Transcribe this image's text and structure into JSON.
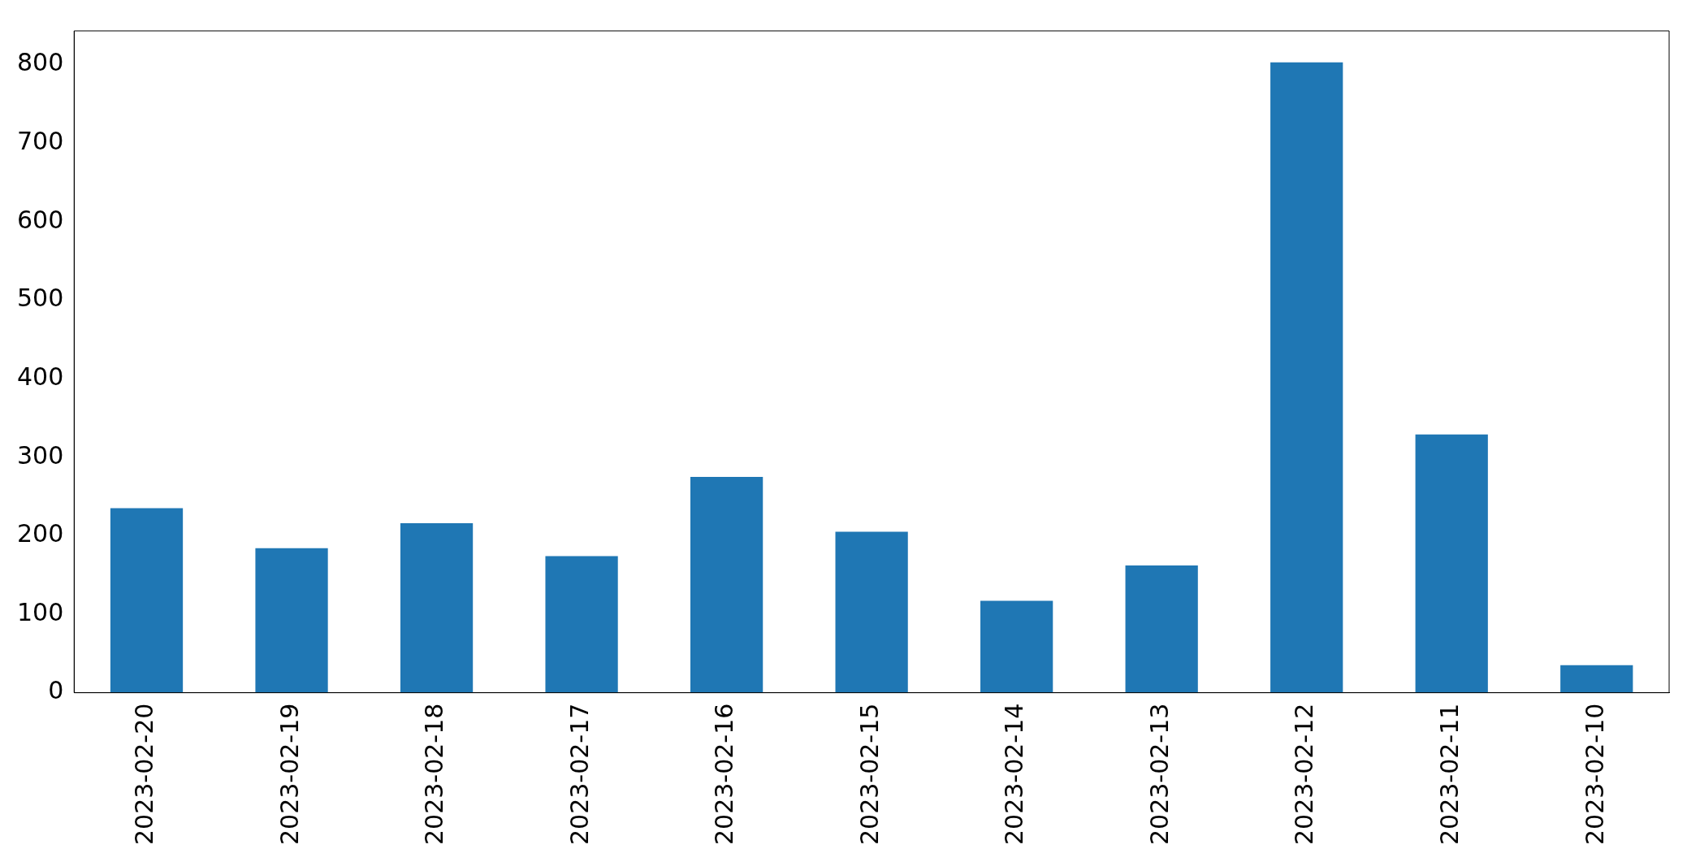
{
  "chart_data": {
    "type": "bar",
    "categories": [
      "2023-02-20",
      "2023-02-19",
      "2023-02-18",
      "2023-02-17",
      "2023-02-16",
      "2023-02-15",
      "2023-02-14",
      "2023-02-13",
      "2023-02-12",
      "2023-02-11",
      "2023-02-10"
    ],
    "values": [
      235,
      184,
      216,
      174,
      275,
      205,
      117,
      162,
      803,
      329,
      35
    ],
    "color": "#1f77b4",
    "ylim": [
      0,
      843
    ],
    "yticks": [
      0,
      100,
      200,
      300,
      400,
      500,
      600,
      700,
      800
    ],
    "grid": false,
    "legend": false
  }
}
